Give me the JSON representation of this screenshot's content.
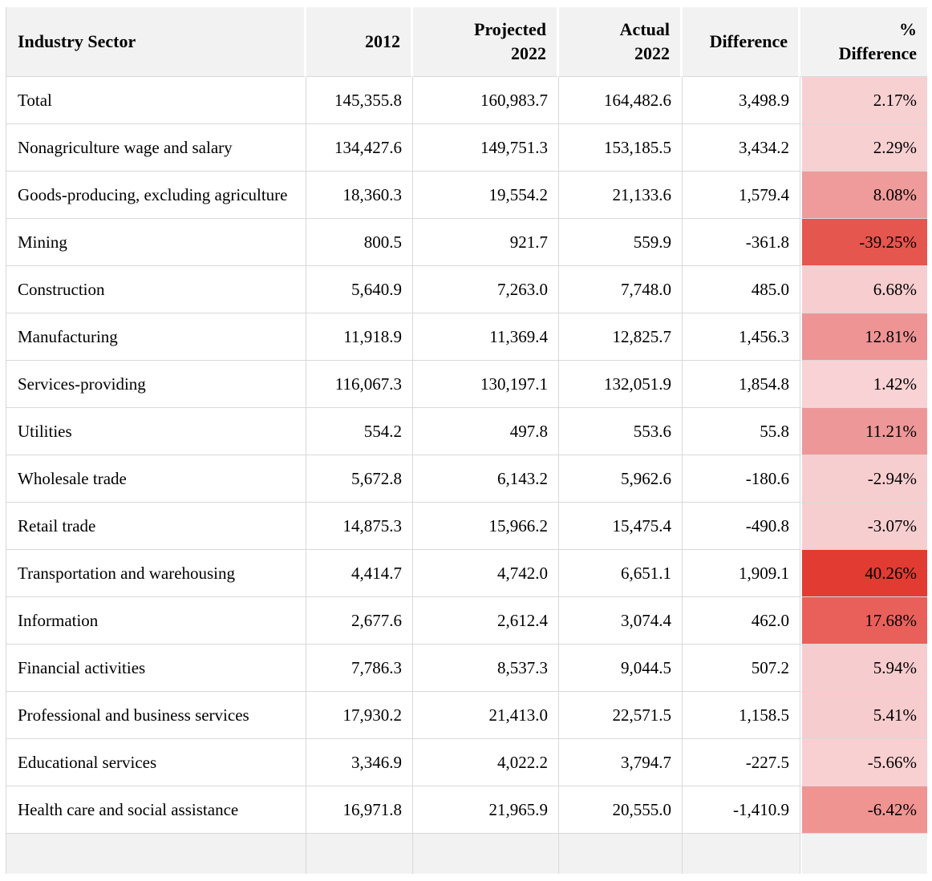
{
  "colors": {
    "page_bg": "#ffffff",
    "header_bg": "#f2f2f2",
    "row_bg": "#ffffff",
    "border": "#d9d9d9",
    "text": "#000000",
    "partial_row_bg": "#f2f2f2",
    "pct_scale_lightest": "#f8d3d5",
    "pct_scale_darkest": "#e23b31"
  },
  "table": {
    "columns": [
      {
        "key": "sector",
        "label": "Industry Sector",
        "lines": [
          "Industry Sector"
        ],
        "align": "left"
      },
      {
        "key": "y2012",
        "label": "2012",
        "lines": [
          "2012"
        ],
        "align": "right"
      },
      {
        "key": "proj2022",
        "label": "Projected 2022",
        "lines": [
          "Projected",
          "2022"
        ],
        "align": "right"
      },
      {
        "key": "actual2022",
        "label": "Actual 2022",
        "lines": [
          "Actual",
          "2022"
        ],
        "align": "right"
      },
      {
        "key": "difference",
        "label": "Difference",
        "lines": [
          "Difference"
        ],
        "align": "right"
      },
      {
        "key": "pct_difference",
        "label": "% Difference",
        "lines": [
          "%",
          "Difference"
        ],
        "align": "right"
      }
    ],
    "rows": [
      {
        "sector": "Total",
        "y2012": "145,355.8",
        "proj2022": "160,983.7",
        "actual2022": "164,482.6",
        "difference": "3,498.9",
        "pct_difference": "2.17%",
        "pct_color": "#f7d0d2"
      },
      {
        "sector": "Nonagriculture wage and salary",
        "y2012": "134,427.6",
        "proj2022": "149,751.3",
        "actual2022": "153,185.5",
        "difference": "3,434.2",
        "pct_difference": "2.29%",
        "pct_color": "#f7d0d2"
      },
      {
        "sector": "Goods-producing, excluding agriculture",
        "y2012": "18,360.3",
        "proj2022": "19,554.2",
        "actual2022": "21,133.6",
        "difference": "1,579.4",
        "pct_difference": "8.08%",
        "pct_color": "#ef9b9b"
      },
      {
        "sector": "Mining",
        "y2012": "800.5",
        "proj2022": "921.7",
        "actual2022": "559.9",
        "difference": "-361.8",
        "pct_difference": "-39.25%",
        "pct_color": "#e5564e"
      },
      {
        "sector": "Construction",
        "y2012": "5,640.9",
        "proj2022": "7,263.0",
        "actual2022": "7,748.0",
        "difference": "485.0",
        "pct_difference": "6.68%",
        "pct_color": "#f7cdcf"
      },
      {
        "sector": "Manufacturing",
        "y2012": "11,918.9",
        "proj2022": "11,369.4",
        "actual2022": "12,825.7",
        "difference": "1,456.3",
        "pct_difference": "12.81%",
        "pct_color": "#ee9495"
      },
      {
        "sector": "Services-providing",
        "y2012": "116,067.3",
        "proj2022": "130,197.1",
        "actual2022": "132,051.9",
        "difference": "1,854.8",
        "pct_difference": "1.42%",
        "pct_color": "#f8d2d4"
      },
      {
        "sector": "Utilities",
        "y2012": "554.2",
        "proj2022": "497.8",
        "actual2022": "553.6",
        "difference": "55.8",
        "pct_difference": "11.21%",
        "pct_color": "#ee9798"
      },
      {
        "sector": "Wholesale trade",
        "y2012": "5,672.8",
        "proj2022": "6,143.2",
        "actual2022": "5,962.6",
        "difference": "-180.6",
        "pct_difference": "-2.94%",
        "pct_color": "#f7ced0"
      },
      {
        "sector": "Retail trade",
        "y2012": "14,875.3",
        "proj2022": "15,966.2",
        "actual2022": "15,475.4",
        "difference": "-490.8",
        "pct_difference": "-3.07%",
        "pct_color": "#f7ced0"
      },
      {
        "sector": "Transportation and warehousing",
        "y2012": "4,414.7",
        "proj2022": "4,742.0",
        "actual2022": "6,651.1",
        "difference": "1,909.1",
        "pct_difference": "40.26%",
        "pct_color": "#e23b31"
      },
      {
        "sector": "Information",
        "y2012": "2,677.6",
        "proj2022": "2,612.4",
        "actual2022": "3,074.4",
        "difference": "462.0",
        "pct_difference": "17.68%",
        "pct_color": "#e9605b"
      },
      {
        "sector": "Financial activities",
        "y2012": "7,786.3",
        "proj2022": "8,537.3",
        "actual2022": "9,044.5",
        "difference": "507.2",
        "pct_difference": "5.94%",
        "pct_color": "#f7cccf"
      },
      {
        "sector": "Professional and business services",
        "y2012": "17,930.2",
        "proj2022": "21,413.0",
        "actual2022": "22,571.5",
        "difference": "1,158.5",
        "pct_difference": "5.41%",
        "pct_color": "#f7cccf"
      },
      {
        "sector": "Educational services",
        "y2012": "3,346.9",
        "proj2022": "4,022.2",
        "actual2022": "3,794.7",
        "difference": "-227.5",
        "pct_difference": "-5.66%",
        "pct_color": "#f8d0d2"
      },
      {
        "sector": "Health care and social assistance",
        "y2012": "16,971.8",
        "proj2022": "21,965.9",
        "actual2022": "20,555.0",
        "difference": "-1,410.9",
        "pct_difference": "-6.42%",
        "pct_color": "#f09492"
      }
    ],
    "partial_next_row_visible": true
  },
  "chart_data": {
    "type": "table",
    "columns": [
      "Industry Sector",
      "2012",
      "Projected 2022",
      "Actual 2022",
      "Difference",
      "% Difference"
    ],
    "rows": [
      [
        "Total",
        145355.8,
        160983.7,
        164482.6,
        3498.9,
        2.17
      ],
      [
        "Nonagriculture wage and salary",
        134427.6,
        149751.3,
        153185.5,
        3434.2,
        2.29
      ],
      [
        "Goods-producing, excluding agriculture",
        18360.3,
        19554.2,
        21133.6,
        1579.4,
        8.08
      ],
      [
        "Mining",
        800.5,
        921.7,
        559.9,
        -361.8,
        -39.25
      ],
      [
        "Construction",
        5640.9,
        7263.0,
        7748.0,
        485.0,
        6.68
      ],
      [
        "Manufacturing",
        11918.9,
        11369.4,
        12825.7,
        1456.3,
        12.81
      ],
      [
        "Services-providing",
        116067.3,
        130197.1,
        132051.9,
        1854.8,
        1.42
      ],
      [
        "Utilities",
        554.2,
        497.8,
        553.6,
        55.8,
        11.21
      ],
      [
        "Wholesale trade",
        5672.8,
        6143.2,
        5962.6,
        -180.6,
        -2.94
      ],
      [
        "Retail trade",
        14875.3,
        15966.2,
        15475.4,
        -490.8,
        -3.07
      ],
      [
        "Transportation and warehousing",
        4414.7,
        4742.0,
        6651.1,
        1909.1,
        40.26
      ],
      [
        "Information",
        2677.6,
        2612.4,
        3074.4,
        462.0,
        17.68
      ],
      [
        "Financial activities",
        7786.3,
        8537.3,
        9044.5,
        507.2,
        5.94
      ],
      [
        "Professional and business services",
        17930.2,
        21413.0,
        22571.5,
        1158.5,
        5.41
      ],
      [
        "Educational services",
        3346.9,
        4022.2,
        3794.7,
        -227.5,
        -5.66
      ],
      [
        "Health care and social assistance",
        16971.8,
        21965.9,
        20555.0,
        -1410.9,
        -6.42
      ]
    ],
    "pct_difference_unit": "%",
    "heatmap_column": "% Difference",
    "heatmap_colors": [
      "#f8d3d5",
      "#e23b31"
    ]
  }
}
